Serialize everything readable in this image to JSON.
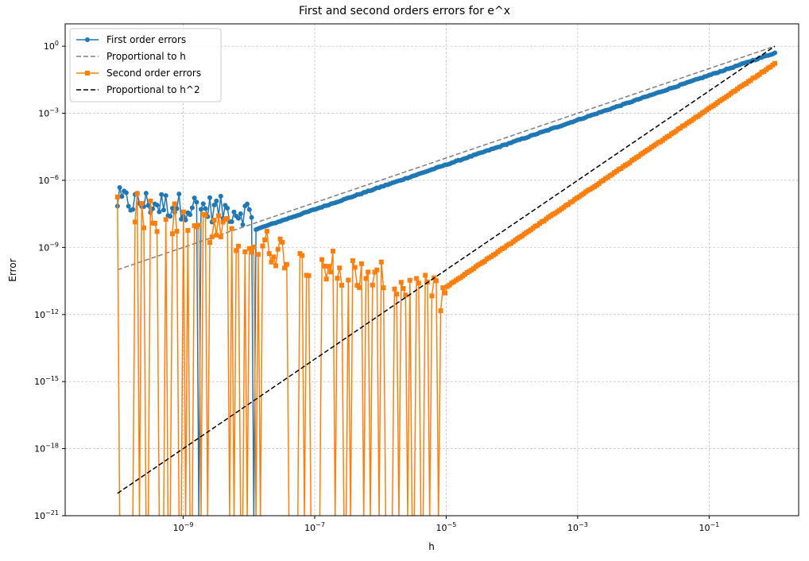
{
  "chart_data": {
    "type": "line",
    "title": "First and second orders errors for e^x",
    "xlabel": "h",
    "ylabel": "Error",
    "xscale": "log",
    "yscale": "log",
    "xlim": [
      1.6e-11,
      2.3
    ],
    "ylim": [
      1e-21,
      10
    ],
    "x_tick_values": [
      1e-09,
      1e-07,
      1e-05,
      0.001,
      0.1
    ],
    "x_tick_labels": [
      {
        "base": "10",
        "exp": "−9"
      },
      {
        "base": "10",
        "exp": "−7"
      },
      {
        "base": "10",
        "exp": "−5"
      },
      {
        "base": "10",
        "exp": "−3"
      },
      {
        "base": "10",
        "exp": "−1"
      }
    ],
    "y_tick_values": [
      1,
      0.001,
      1e-06,
      1e-09,
      1e-12,
      1e-15,
      1e-18,
      1e-21
    ],
    "y_tick_labels": [
      {
        "base": "10",
        "exp": "0"
      },
      {
        "base": "10",
        "exp": "−3"
      },
      {
        "base": "10",
        "exp": "−6"
      },
      {
        "base": "10",
        "exp": "−9"
      },
      {
        "base": "10",
        "exp": "−12"
      },
      {
        "base": "10",
        "exp": "−15"
      },
      {
        "base": "10",
        "exp": "−18"
      },
      {
        "base": "10",
        "exp": "−21"
      }
    ],
    "grid": true,
    "legend_position": "top-left",
    "series": [
      {
        "name": "First order errors",
        "color": "#1f77b4",
        "style": "solid",
        "marker": "circle",
        "x_range": [
          1e-10,
          1
        ],
        "samples": 300,
        "model": "h/2 for h above ~1e-8; noisy below",
        "noise_region": {
          "x_max": 1.2e-08,
          "y_range": [
            3e-09,
            8e-07
          ]
        }
      },
      {
        "name": "Proportional to h",
        "color": "#7f7f7f",
        "style": "dashed",
        "marker": "none",
        "x": [
          1e-10,
          1
        ],
        "y": [
          1e-10,
          1
        ]
      },
      {
        "name": "Second order errors",
        "color": "#ff7f0e",
        "style": "solid",
        "marker": "square",
        "x_range": [
          1e-10,
          1
        ],
        "samples": 300,
        "model": "h^2/6 for h above ~1e-5; noisy below",
        "noise_region": {
          "x_max": 1e-05,
          "y_range": [
            1e-12,
            1e-07
          ]
        }
      },
      {
        "name": "Proportional to h^2",
        "color": "#000000",
        "style": "dashed",
        "marker": "none",
        "x": [
          1e-10,
          1
        ],
        "y": [
          1e-20,
          1
        ]
      }
    ]
  }
}
